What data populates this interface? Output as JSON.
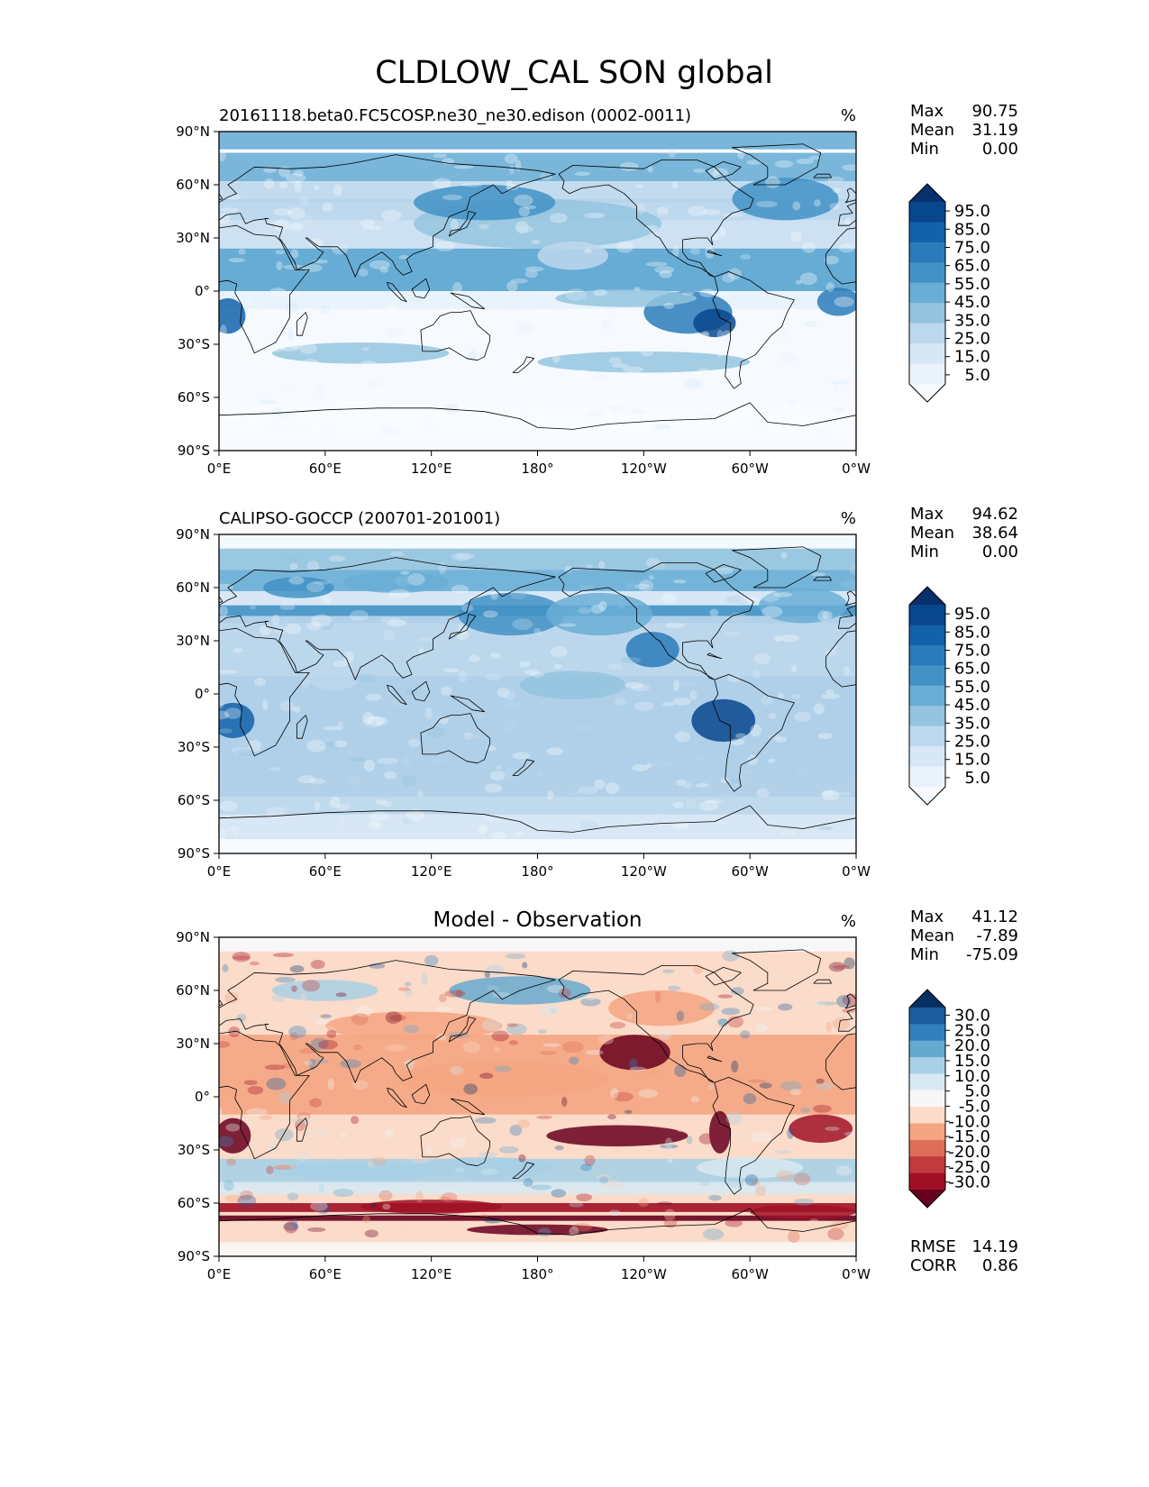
{
  "figure_title": "CLDLOW_CAL SON global",
  "chart_data": [
    {
      "type": "heatmap",
      "name": "model",
      "title_left": "20161118.beta0.FC5COSP.ne30_ne30.edison (0002-0011)",
      "title_center": "",
      "units": "%",
      "x_ticks": [
        "0°E",
        "60°E",
        "120°E",
        "180°",
        "120°W",
        "60°W",
        "0°W"
      ],
      "y_ticks": [
        "90°N",
        "60°N",
        "30°N",
        "0°",
        "30°S",
        "60°S",
        "90°S"
      ],
      "xlim": [
        0,
        360
      ],
      "ylim": [
        -90,
        90
      ],
      "stats": [
        {
          "label": "Max",
          "value": "90.75"
        },
        {
          "label": "Mean",
          "value": "31.19"
        },
        {
          "label": "Min",
          "value": "0.00"
        }
      ],
      "colorbar": {
        "levels": [
          "95.0",
          "85.0",
          "75.0",
          "65.0",
          "55.0",
          "45.0",
          "35.0",
          "25.0",
          "15.0",
          "5.0"
        ],
        "colors": [
          "#08306b",
          "#08468e",
          "#1361a9",
          "#2b7bba",
          "#4292c6",
          "#6aaed6",
          "#94c4df",
          "#bdd7ec",
          "#d8e7f5",
          "#eaf2fb",
          "#f7fbff"
        ]
      },
      "extra_stats": []
    },
    {
      "type": "heatmap",
      "name": "observation",
      "title_left": "CALIPSO-GOCCP (200701-201001)",
      "title_center": "",
      "units": "%",
      "x_ticks": [
        "0°E",
        "60°E",
        "120°E",
        "180°",
        "120°W",
        "60°W",
        "0°W"
      ],
      "y_ticks": [
        "90°N",
        "60°N",
        "30°N",
        "0°",
        "30°S",
        "60°S",
        "90°S"
      ],
      "xlim": [
        0,
        360
      ],
      "ylim": [
        -90,
        90
      ],
      "stats": [
        {
          "label": "Max",
          "value": "94.62"
        },
        {
          "label": "Mean",
          "value": "38.64"
        },
        {
          "label": "Min",
          "value": "0.00"
        }
      ],
      "colorbar": {
        "levels": [
          "95.0",
          "85.0",
          "75.0",
          "65.0",
          "55.0",
          "45.0",
          "35.0",
          "25.0",
          "15.0",
          "5.0"
        ],
        "colors": [
          "#08306b",
          "#08468e",
          "#1361a9",
          "#2b7bba",
          "#4292c6",
          "#6aaed6",
          "#94c4df",
          "#bdd7ec",
          "#d8e7f5",
          "#eaf2fb",
          "#f7fbff"
        ]
      },
      "extra_stats": []
    },
    {
      "type": "heatmap",
      "name": "difference",
      "title_left": "",
      "title_center": "Model - Observation",
      "units": "%",
      "x_ticks": [
        "0°E",
        "60°E",
        "120°E",
        "180°",
        "120°W",
        "60°W",
        "0°W"
      ],
      "y_ticks": [
        "90°N",
        "60°N",
        "30°N",
        "0°",
        "30°S",
        "60°S",
        "90°S"
      ],
      "xlim": [
        0,
        360
      ],
      "ylim": [
        -90,
        90
      ],
      "stats": [
        {
          "label": "Max",
          "value": "41.12"
        },
        {
          "label": "Mean",
          "value": "-7.89"
        },
        {
          "label": "Min",
          "value": "-75.09"
        }
      ],
      "colorbar": {
        "levels": [
          "30.0",
          "25.0",
          "20.0",
          "15.0",
          "10.0",
          "5.0",
          "-5.0",
          "-10.0",
          "-15.0",
          "-20.0",
          "-25.0",
          "-30.0"
        ],
        "colors": [
          "#053061",
          "#1c5c9f",
          "#3381bc",
          "#66a9cf",
          "#a9d0e5",
          "#d8e9f1",
          "#f7f7f7",
          "#fbdbc9",
          "#f4a582",
          "#de6e59",
          "#c13b3c",
          "#a01025",
          "#67001f"
        ]
      },
      "extra_stats": [
        {
          "label": "RMSE",
          "value": "14.19"
        },
        {
          "label": "CORR",
          "value": "0.86"
        }
      ]
    }
  ]
}
